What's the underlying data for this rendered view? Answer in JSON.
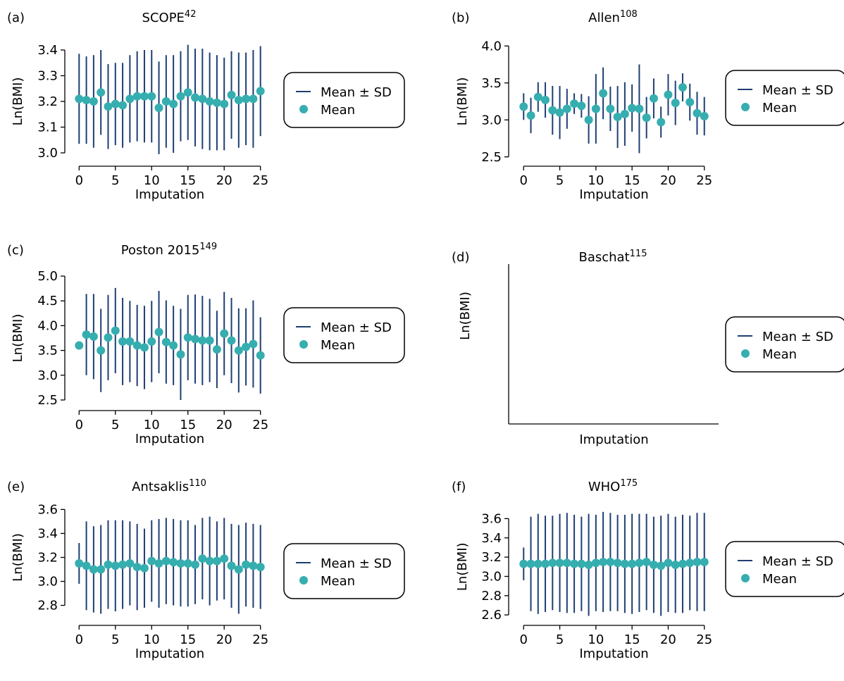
{
  "colors": {
    "errorbar": "#1f3e72",
    "mean_marker": "#36aeb0",
    "axis": "#000000"
  },
  "legend": {
    "line_label": "Mean ± SD",
    "marker_label": "Mean"
  },
  "chart_data": [
    {
      "panel": "(a)",
      "title": "SCOPE",
      "title_sup": "42",
      "type": "scatter",
      "xlabel": "Imputation",
      "ylabel": "Ln(BMI)",
      "xlim": [
        -1,
        26
      ],
      "ylim": [
        2.97,
        3.43
      ],
      "xticks": [
        0,
        5,
        10,
        15,
        20,
        25
      ],
      "yticks": [
        3.0,
        3.1,
        3.2,
        3.3,
        3.4
      ],
      "x": [
        0,
        1,
        2,
        3,
        4,
        5,
        6,
        7,
        8,
        9,
        10,
        11,
        12,
        13,
        14,
        15,
        16,
        17,
        18,
        19,
        20,
        21,
        22,
        23,
        24,
        25
      ],
      "series": [
        {
          "name": "Mean",
          "values": [
            3.21,
            3.205,
            3.2,
            3.235,
            3.18,
            3.19,
            3.185,
            3.21,
            3.22,
            3.22,
            3.22,
            3.175,
            3.2,
            3.19,
            3.22,
            3.235,
            3.215,
            3.21,
            3.2,
            3.195,
            3.19,
            3.225,
            3.205,
            3.21,
            3.21,
            3.24
          ]
        },
        {
          "name": "SD",
          "values": [
            0.175,
            0.17,
            0.18,
            0.165,
            0.165,
            0.16,
            0.165,
            0.17,
            0.175,
            0.18,
            0.18,
            0.18,
            0.18,
            0.19,
            0.175,
            0.185,
            0.19,
            0.195,
            0.19,
            0.185,
            0.18,
            0.17,
            0.185,
            0.18,
            0.19,
            0.175
          ]
        }
      ]
    },
    {
      "panel": "(b)",
      "title": "Allen",
      "title_sup": "108",
      "type": "scatter",
      "xlabel": "Imputation",
      "ylabel": "Ln(BMI)",
      "xlim": [
        -1,
        26
      ],
      "ylim": [
        2.45,
        4.05
      ],
      "xticks": [
        0,
        5,
        10,
        15,
        20,
        25
      ],
      "yticks": [
        2.5,
        3.0,
        3.5,
        4.0
      ],
      "x": [
        0,
        1,
        2,
        3,
        4,
        5,
        6,
        7,
        8,
        9,
        10,
        11,
        12,
        13,
        14,
        15,
        16,
        17,
        18,
        19,
        20,
        21,
        22,
        23,
        24,
        25
      ],
      "series": [
        {
          "name": "Mean",
          "values": [
            3.18,
            3.06,
            3.31,
            3.27,
            3.13,
            3.1,
            3.15,
            3.22,
            3.19,
            3.0,
            3.15,
            3.36,
            3.15,
            3.04,
            3.08,
            3.16,
            3.15,
            3.03,
            3.29,
            2.97,
            3.34,
            3.23,
            3.44,
            3.24,
            3.09,
            3.05
          ]
        },
        {
          "name": "SD",
          "values": [
            0.18,
            0.24,
            0.2,
            0.24,
            0.33,
            0.36,
            0.27,
            0.14,
            0.16,
            0.32,
            0.47,
            0.35,
            0.3,
            0.42,
            0.43,
            0.32,
            0.6,
            0.28,
            0.27,
            0.21,
            0.28,
            0.3,
            0.19,
            0.25,
            0.29,
            0.26
          ]
        }
      ]
    },
    {
      "panel": "(c)",
      "title": "Poston 2015",
      "title_sup": "149",
      "type": "scatter",
      "xlabel": "Imputation",
      "ylabel": "Ln(BMI)",
      "xlim": [
        -1,
        26
      ],
      "ylim": [
        2.4,
        5.1
      ],
      "xticks": [
        0,
        5,
        10,
        15,
        20,
        25
      ],
      "yticks": [
        2.5,
        3.0,
        3.5,
        4.0,
        4.5,
        5.0
      ],
      "x": [
        0,
        1,
        2,
        3,
        4,
        5,
        6,
        7,
        8,
        9,
        10,
        11,
        12,
        13,
        14,
        15,
        16,
        17,
        18,
        19,
        20,
        21,
        22,
        23,
        24,
        25
      ],
      "series": [
        {
          "name": "Mean",
          "values": [
            3.6,
            3.82,
            3.78,
            3.5,
            3.76,
            3.9,
            3.68,
            3.68,
            3.6,
            3.56,
            3.68,
            3.87,
            3.67,
            3.6,
            3.42,
            3.76,
            3.73,
            3.7,
            3.7,
            3.52,
            3.84,
            3.7,
            3.5,
            3.57,
            3.63,
            3.4
          ]
        },
        {
          "name": "SD",
          "values": [
            0.08,
            0.82,
            0.86,
            0.84,
            0.86,
            0.86,
            0.88,
            0.82,
            0.82,
            0.84,
            0.82,
            0.83,
            0.84,
            0.8,
            0.92,
            0.86,
            0.9,
            0.9,
            0.84,
            0.78,
            0.84,
            0.86,
            0.85,
            0.78,
            0.88,
            0.77
          ]
        }
      ]
    },
    {
      "panel": "(d)",
      "title": "Baschat",
      "title_sup": "115",
      "type": "scatter",
      "xlabel": "Imputation",
      "ylabel": "Ln(BMI)",
      "xlim": [
        0,
        1
      ],
      "ylim": [
        0,
        1
      ],
      "xticks": [],
      "yticks": [],
      "x": [],
      "series": []
    },
    {
      "panel": "(e)",
      "title": "Antsaklis",
      "title_sup": "110",
      "type": "scatter",
      "xlabel": "Imputation",
      "ylabel": "Ln(BMI)",
      "xlim": [
        -1,
        26
      ],
      "ylim": [
        2.68,
        3.62
      ],
      "xticks": [
        0,
        5,
        10,
        15,
        20,
        25
      ],
      "yticks": [
        2.8,
        3.0,
        3.2,
        3.4,
        3.6
      ],
      "x": [
        0,
        1,
        2,
        3,
        4,
        5,
        6,
        7,
        8,
        9,
        10,
        11,
        12,
        13,
        14,
        15,
        16,
        17,
        18,
        19,
        20,
        21,
        22,
        23,
        24,
        25
      ],
      "series": [
        {
          "name": "Mean",
          "values": [
            3.15,
            3.13,
            3.1,
            3.1,
            3.14,
            3.13,
            3.14,
            3.15,
            3.12,
            3.11,
            3.17,
            3.15,
            3.17,
            3.16,
            3.15,
            3.15,
            3.14,
            3.19,
            3.17,
            3.17,
            3.19,
            3.13,
            3.1,
            3.14,
            3.13,
            3.12
          ]
        },
        {
          "name": "SD",
          "values": [
            0.17,
            0.37,
            0.36,
            0.37,
            0.37,
            0.38,
            0.37,
            0.35,
            0.36,
            0.33,
            0.34,
            0.37,
            0.36,
            0.36,
            0.36,
            0.36,
            0.33,
            0.34,
            0.37,
            0.33,
            0.34,
            0.35,
            0.37,
            0.35,
            0.35,
            0.35
          ]
        }
      ]
    },
    {
      "panel": "(f)",
      "title": "WHO",
      "title_sup": "175",
      "type": "scatter",
      "xlabel": "Imputation",
      "ylabel": "Ln(BMI)",
      "xlim": [
        -1,
        26
      ],
      "ylim": [
        2.55,
        3.72
      ],
      "xticks": [
        0,
        5,
        10,
        15,
        20,
        25
      ],
      "yticks": [
        2.6,
        2.8,
        3.0,
        3.2,
        3.4,
        3.6
      ],
      "x": [
        0,
        1,
        2,
        3,
        4,
        5,
        6,
        7,
        8,
        9,
        10,
        11,
        12,
        13,
        14,
        15,
        16,
        17,
        18,
        19,
        20,
        21,
        22,
        23,
        24,
        25
      ],
      "series": [
        {
          "name": "Mean",
          "values": [
            3.13,
            3.13,
            3.13,
            3.13,
            3.14,
            3.14,
            3.14,
            3.13,
            3.13,
            3.12,
            3.14,
            3.15,
            3.15,
            3.14,
            3.13,
            3.13,
            3.14,
            3.15,
            3.12,
            3.11,
            3.14,
            3.12,
            3.13,
            3.14,
            3.15,
            3.15
          ]
        },
        {
          "name": "SD",
          "values": [
            0.17,
            0.49,
            0.52,
            0.5,
            0.49,
            0.51,
            0.52,
            0.51,
            0.49,
            0.53,
            0.5,
            0.52,
            0.51,
            0.5,
            0.51,
            0.52,
            0.51,
            0.5,
            0.5,
            0.52,
            0.51,
            0.5,
            0.51,
            0.49,
            0.51,
            0.51
          ]
        }
      ]
    }
  ]
}
